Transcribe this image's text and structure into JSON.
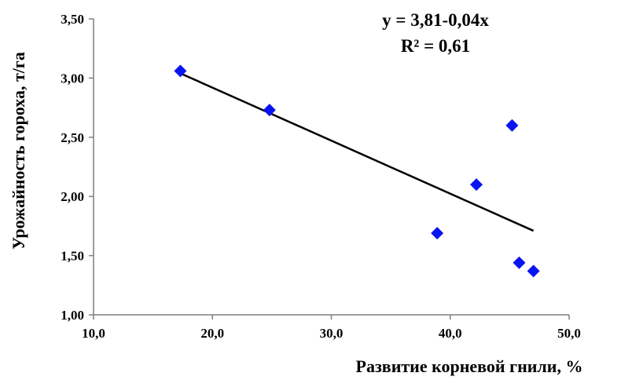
{
  "chart_data": {
    "type": "scatter",
    "xlabel": "Развитие корневой гнили, %",
    "ylabel": "Урожайность гороха, т/га",
    "xlim": [
      10,
      50
    ],
    "ylim": [
      1.0,
      3.5
    ],
    "x_ticks": [
      "10,0",
      "20,0",
      "30,0",
      "40,0",
      "50,0"
    ],
    "y_ticks": [
      "1,00",
      "1,50",
      "2,00",
      "2,50",
      "3,00",
      "3,50"
    ],
    "grid": false,
    "points": [
      {
        "x": 17.3,
        "y": 3.06
      },
      {
        "x": 24.8,
        "y": 2.73
      },
      {
        "x": 38.9,
        "y": 1.69
      },
      {
        "x": 42.2,
        "y": 2.1
      },
      {
        "x": 45.2,
        "y": 2.6
      },
      {
        "x": 45.8,
        "y": 1.44
      },
      {
        "x": 47.0,
        "y": 1.37
      }
    ],
    "trendline": {
      "x_start": 17.3,
      "y_start": 3.04,
      "x_end": 47.0,
      "y_end": 1.71
    },
    "annotations": {
      "equation": "y = 3,81-0,04x",
      "r_squared": "R² = 0,61"
    },
    "colors": {
      "marker": "#0a14f0",
      "trendline": "#000000",
      "axis": "#7f7f7f"
    }
  }
}
